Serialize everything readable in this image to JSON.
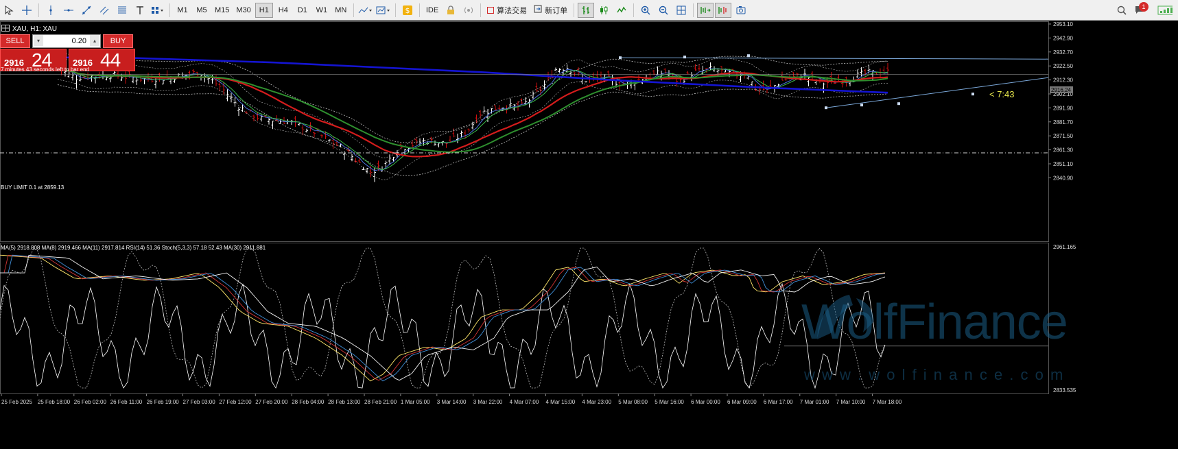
{
  "toolbar": {
    "timeframes": [
      "M1",
      "M5",
      "M15",
      "M30",
      "H1",
      "H4",
      "D1",
      "W1",
      "MN"
    ],
    "active_timeframe": "H1",
    "ide_label": "IDE",
    "algo_trading_label": "算法交易",
    "new_order_label": "新订单",
    "notification_count": "1"
  },
  "chart": {
    "title": "XAU, H1: XAU",
    "timer_to_bar_end": "7 minutes 43 seconds left to bar end",
    "countdown": "< 7:43",
    "buy_limit_label": "BUY LIMIT 0.1 at 2859.13",
    "current_price_label": "2916.24",
    "price_ticks": [
      "2953.10",
      "2942.90",
      "2932.70",
      "2922.50",
      "2912.30",
      "2902.10",
      "2891.90",
      "2881.70",
      "2871.50",
      "2861.30",
      "2851.10",
      "2840.90"
    ],
    "time_ticks": [
      "25 Feb 2025",
      "25 Feb 18:00",
      "26 Feb 02:00",
      "26 Feb 11:00",
      "26 Feb 19:00",
      "27 Feb 03:00",
      "27 Feb 12:00",
      "27 Feb 20:00",
      "28 Feb 04:00",
      "28 Feb 13:00",
      "28 Feb 21:00",
      "1 Mar 05:00",
      "3 Mar 14:00",
      "3 Mar 22:00",
      "4 Mar 07:00",
      "4 Mar 15:00",
      "4 Mar 23:00",
      "5 Mar 08:00",
      "5 Mar 16:00",
      "6 Mar 00:00",
      "6 Mar 09:00",
      "6 Mar 17:00",
      "7 Mar 01:00",
      "7 Mar 10:00",
      "7 Mar 18:00"
    ]
  },
  "trade_panel": {
    "sell_label": "SELL",
    "buy_label": "BUY",
    "lot": "0.20",
    "sell_small": "2916",
    "sell_big": "24",
    "buy_small": "2916",
    "buy_big": "44"
  },
  "indicator": {
    "label": "MA(5) 2918.808 MA(8) 2919.466 MA(11) 2917.814 RSI(14) 51.36 Stoch(5,3,3) 57.18 52.43 MA(30) 2911.881",
    "top_tick": "2961.165",
    "bottom_tick": "2833.535"
  },
  "watermark": {
    "brand": "WolfFinance",
    "url": "w w w . w o l f i n a n c e . c o m"
  },
  "colors": {
    "ma_blue": "#1414d2",
    "ma_red": "#d41c1c",
    "ma_green": "#2e8f2e",
    "bullish": "#ffffff",
    "bearish": "#d01010",
    "bands": "#bfbfbf",
    "trendline": "#7aa7d8",
    "countdown": "#e6e64c"
  }
}
